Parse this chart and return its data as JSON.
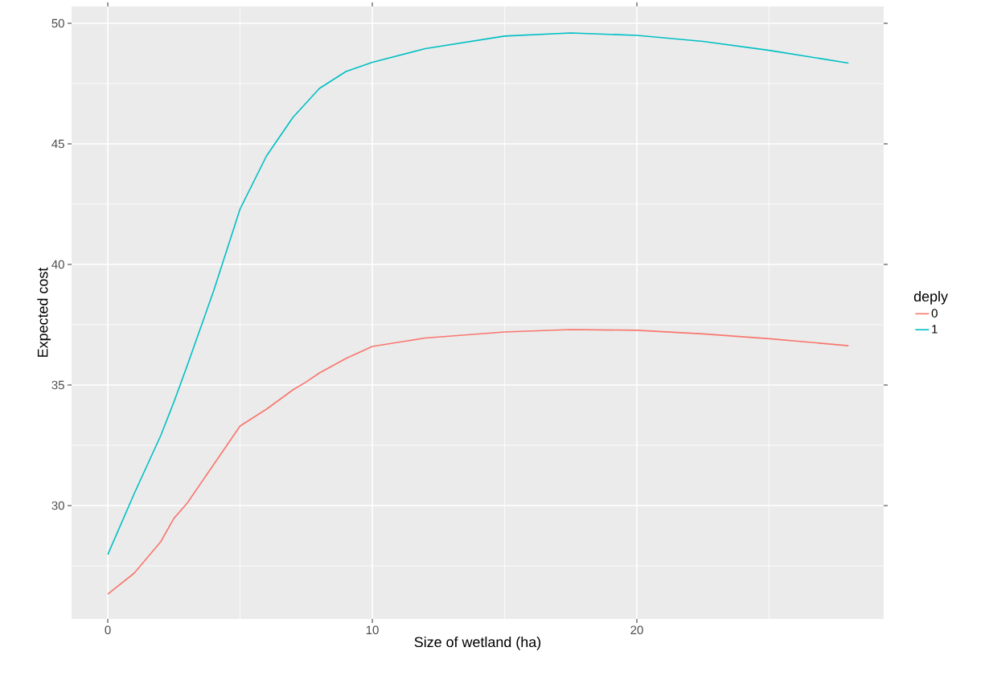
{
  "chart_data": {
    "type": "line",
    "xlabel": "Size of wetland (ha)",
    "ylabel": "Expected cost",
    "legend_title": "deply",
    "x": [
      0,
      1,
      2,
      2.5,
      3,
      4,
      5,
      6,
      7,
      7.5,
      8,
      9,
      10,
      12,
      15,
      17.5,
      20,
      22.5,
      25,
      28
    ],
    "series": [
      {
        "name": "0",
        "color": "#f8766d",
        "values": [
          26.33,
          27.2,
          28.5,
          29.47,
          30.1,
          31.7,
          33.3,
          34.0,
          34.8,
          35.13,
          35.5,
          36.1,
          36.6,
          36.95,
          37.2,
          37.3,
          37.27,
          37.12,
          36.92,
          36.63
        ]
      },
      {
        "name": "1",
        "color": "#00bfc4",
        "values": [
          27.97,
          30.5,
          32.9,
          34.3,
          35.8,
          38.9,
          42.3,
          44.5,
          46.1,
          46.7,
          47.3,
          48.0,
          48.38,
          48.95,
          49.47,
          49.6,
          49.5,
          49.25,
          48.88,
          48.35
        ]
      }
    ],
    "xlim": [
      -1.37,
      29.33
    ],
    "ylim": [
      25.3,
      50.7
    ],
    "xticks": [
      0,
      10,
      20
    ],
    "yticks": [
      30,
      35,
      40,
      45,
      50
    ],
    "grid": true,
    "legend": "right",
    "marker": "none",
    "line_style": "solid"
  }
}
